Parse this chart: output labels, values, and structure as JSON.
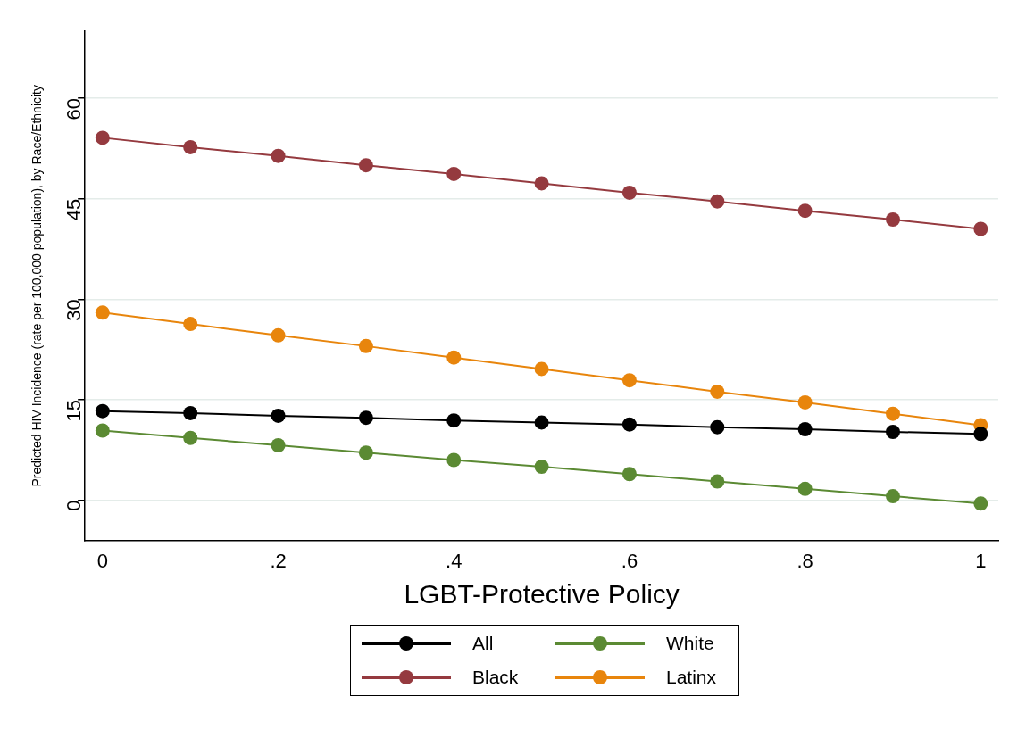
{
  "chart_data": {
    "type": "line",
    "xlabel": "LGBT-Protective Policy",
    "ylabel": "Predicted HIV Incidence (rate per 100,000 population), by Race/Ethnicity",
    "x": [
      0,
      0.1,
      0.2,
      0.3,
      0.4,
      0.5,
      0.6,
      0.7,
      0.8,
      0.9,
      1
    ],
    "xlim": [
      -0.02,
      1.02
    ],
    "xticks": [
      0,
      {
        "value": 0.2,
        "label": ".2"
      },
      {
        "value": 0.4,
        "label": ".4"
      },
      {
        "value": 0.6,
        "label": ".6"
      },
      {
        "value": 0.8,
        "label": ".8"
      },
      1
    ],
    "ylim": [
      -6,
      70
    ],
    "yticks": [
      0,
      15,
      30,
      45,
      60
    ],
    "grid": "y",
    "legend": "bottom",
    "marker": "circle",
    "line_style": "solid",
    "series": [
      {
        "name": "All",
        "color": "#000000",
        "values": [
          13.3,
          13.0,
          12.6,
          12.3,
          11.9,
          11.6,
          11.3,
          10.9,
          10.6,
          10.2,
          9.9
        ]
      },
      {
        "name": "White",
        "color": "#5b8a33",
        "values": [
          10.4,
          9.3,
          8.2,
          7.1,
          6.0,
          5.0,
          3.9,
          2.8,
          1.7,
          0.6,
          -0.5
        ]
      },
      {
        "name": "Black",
        "color": "#953a3f",
        "values": [
          54.1,
          52.7,
          51.4,
          50.0,
          48.7,
          47.3,
          45.9,
          44.6,
          43.2,
          41.9,
          40.5
        ]
      },
      {
        "name": "Latinx",
        "color": "#e8850c",
        "values": [
          28.0,
          26.3,
          24.6,
          23.0,
          21.3,
          19.6,
          17.9,
          16.2,
          14.6,
          12.9,
          11.2
        ]
      }
    ]
  }
}
